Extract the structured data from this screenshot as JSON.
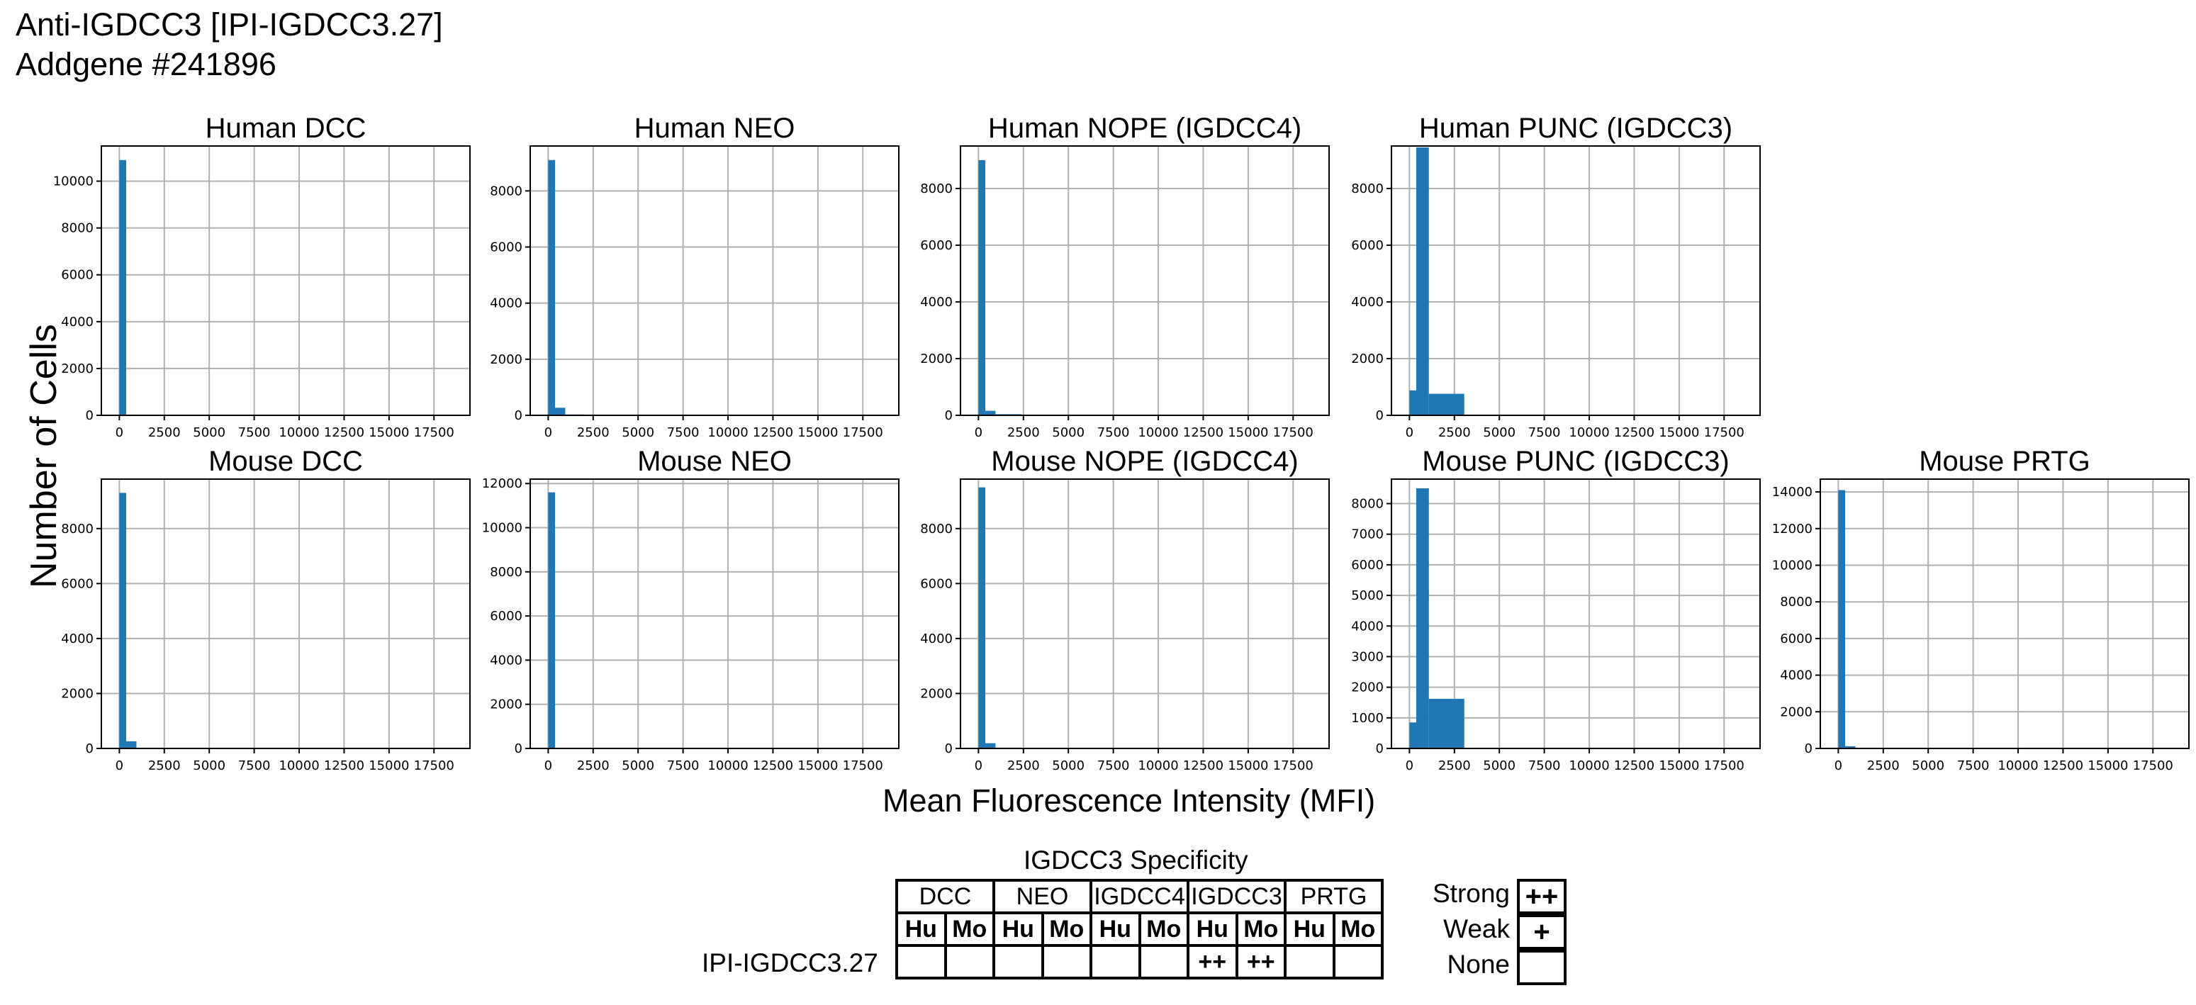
{
  "title_lines": [
    "Anti-IGDCC3 [IPI-IGDCC3.27]",
    "Addgene #241896"
  ],
  "shared_ylabel": "Number of Cells",
  "shared_xlabel": "Mean Fluorescence Intensity (MFI)",
  "colors": {
    "bar": "#1f77b4",
    "grid": "#b0b0b0",
    "axis": "#000000"
  },
  "chart_data": [
    {
      "type": "bar",
      "title": "Human DCC",
      "xlim": [
        -1000,
        19500
      ],
      "ylim": [
        0,
        11500
      ],
      "xticks": [
        0,
        2500,
        5000,
        7500,
        10000,
        12500,
        15000,
        17500
      ],
      "yticks": [
        0,
        2000,
        4000,
        6000,
        8000,
        10000
      ],
      "bins": [
        {
          "x0": 0,
          "x1": 380,
          "count": 10900
        }
      ]
    },
    {
      "type": "bar",
      "title": "Human NEO",
      "xlim": [
        -1000,
        19500
      ],
      "ylim": [
        0,
        9600
      ],
      "xticks": [
        0,
        2500,
        5000,
        7500,
        10000,
        12500,
        15000,
        17500
      ],
      "yticks": [
        0,
        2000,
        4000,
        6000,
        8000
      ],
      "bins": [
        {
          "x0": 0,
          "x1": 380,
          "count": 9100
        },
        {
          "x0": 380,
          "x1": 950,
          "count": 270
        },
        {
          "x0": 950,
          "x1": 2000,
          "count": 30
        }
      ]
    },
    {
      "type": "bar",
      "title": "Human NOPE (IGDCC4)",
      "xlim": [
        -1000,
        19500
      ],
      "ylim": [
        0,
        9500
      ],
      "xticks": [
        0,
        2500,
        5000,
        7500,
        10000,
        12500,
        15000,
        17500
      ],
      "yticks": [
        0,
        2000,
        4000,
        6000,
        8000
      ],
      "bins": [
        {
          "x0": 0,
          "x1": 380,
          "count": 9000
        },
        {
          "x0": 380,
          "x1": 950,
          "count": 160
        },
        {
          "x0": 950,
          "x1": 2400,
          "count": 40
        }
      ]
    },
    {
      "type": "bar",
      "title": "Human PUNC (IGDCC3)",
      "xlim": [
        -1000,
        19500
      ],
      "ylim": [
        0,
        9500
      ],
      "xticks": [
        0,
        2500,
        5000,
        7500,
        10000,
        12500,
        15000,
        17500
      ],
      "yticks": [
        0,
        2000,
        4000,
        6000,
        8000
      ],
      "bins": [
        {
          "x0": 0,
          "x1": 380,
          "count": 880
        },
        {
          "x0": 380,
          "x1": 1080,
          "count": 9450
        },
        {
          "x0": 1080,
          "x1": 3050,
          "count": 760
        }
      ]
    },
    null,
    {
      "type": "bar",
      "title": "Mouse DCC",
      "xlim": [
        -1000,
        19500
      ],
      "ylim": [
        0,
        9800
      ],
      "xticks": [
        0,
        2500,
        5000,
        7500,
        10000,
        12500,
        15000,
        17500
      ],
      "yticks": [
        0,
        2000,
        4000,
        6000,
        8000
      ],
      "bins": [
        {
          "x0": 0,
          "x1": 380,
          "count": 9300
        },
        {
          "x0": 380,
          "x1": 950,
          "count": 260
        },
        {
          "x0": 950,
          "x1": 2000,
          "count": 20
        }
      ]
    },
    {
      "type": "bar",
      "title": "Mouse NEO",
      "xlim": [
        -1000,
        19500
      ],
      "ylim": [
        0,
        12200
      ],
      "xticks": [
        0,
        2500,
        5000,
        7500,
        10000,
        12500,
        15000,
        17500
      ],
      "yticks": [
        0,
        2000,
        4000,
        6000,
        8000,
        10000,
        12000
      ],
      "bins": [
        {
          "x0": 0,
          "x1": 380,
          "count": 11600
        }
      ]
    },
    {
      "type": "bar",
      "title": "Mouse NOPE (IGDCC4)",
      "xlim": [
        -1000,
        19500
      ],
      "ylim": [
        0,
        9800
      ],
      "xticks": [
        0,
        2500,
        5000,
        7500,
        10000,
        12500,
        15000,
        17500
      ],
      "yticks": [
        0,
        2000,
        4000,
        6000,
        8000
      ],
      "bins": [
        {
          "x0": 0,
          "x1": 380,
          "count": 9500
        },
        {
          "x0": 380,
          "x1": 950,
          "count": 190
        },
        {
          "x0": 950,
          "x1": 2400,
          "count": 30
        }
      ]
    },
    {
      "type": "bar",
      "title": "Mouse PUNC (IGDCC3)",
      "xlim": [
        -1000,
        19500
      ],
      "ylim": [
        0,
        8800
      ],
      "xticks": [
        0,
        2500,
        5000,
        7500,
        10000,
        12500,
        15000,
        17500
      ],
      "yticks": [
        0,
        1000,
        2000,
        3000,
        4000,
        5000,
        6000,
        7000,
        8000
      ],
      "bins": [
        {
          "x0": 0,
          "x1": 380,
          "count": 850
        },
        {
          "x0": 380,
          "x1": 1080,
          "count": 8500
        },
        {
          "x0": 1080,
          "x1": 3050,
          "count": 1620
        }
      ]
    },
    {
      "type": "bar",
      "title": "Mouse PRTG",
      "xlim": [
        -1000,
        19500
      ],
      "ylim": [
        0,
        14700
      ],
      "xticks": [
        0,
        2500,
        5000,
        7500,
        10000,
        12500,
        15000,
        17500
      ],
      "yticks": [
        0,
        2000,
        4000,
        6000,
        8000,
        10000,
        12000,
        14000
      ],
      "bins": [
        {
          "x0": 0,
          "x1": 380,
          "count": 14100
        },
        {
          "x0": 380,
          "x1": 950,
          "count": 120
        },
        {
          "x0": 950,
          "x1": 19000,
          "count": 15
        }
      ]
    }
  ],
  "specificity_table": {
    "title": "IGDCC3 Specificity",
    "groups": [
      "DCC",
      "NEO",
      "IGDCC4",
      "IGDCC3",
      "PRTG"
    ],
    "subheaders": [
      "Hu",
      "Mo",
      "Hu",
      "Mo",
      "Hu",
      "Mo",
      "Hu",
      "Mo",
      "Hu",
      "Mo"
    ],
    "rows": [
      {
        "label": "IPI-IGDCC3.27",
        "cells": [
          "",
          "",
          "",
          "",
          "",
          "",
          "++",
          "++",
          "",
          ""
        ]
      }
    ]
  },
  "legend": [
    {
      "label": "Strong",
      "symbol": "++"
    },
    {
      "label": "Weak",
      "symbol": "+"
    },
    {
      "label": "None",
      "symbol": ""
    }
  ]
}
